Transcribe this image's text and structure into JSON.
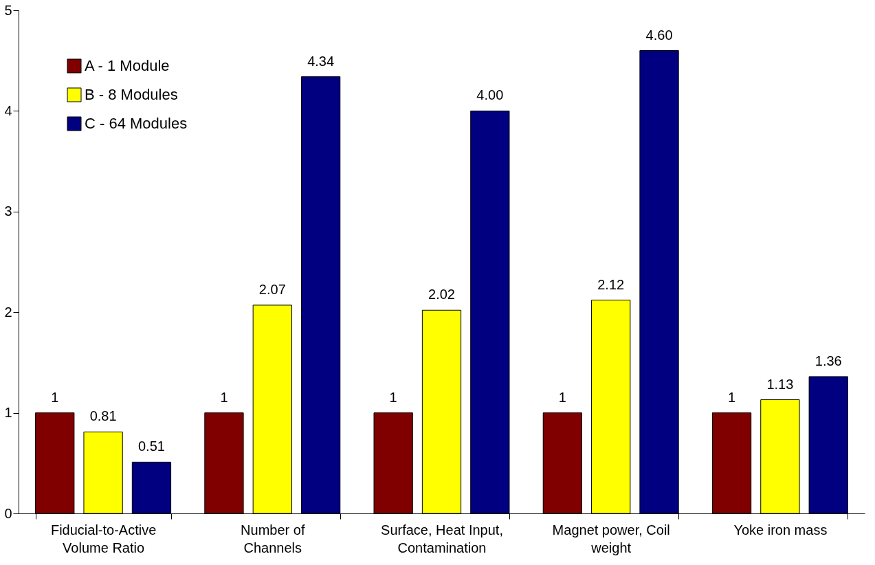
{
  "chart_data": {
    "type": "bar",
    "categories": [
      "Fiducial-to-Active\nVolume Ratio",
      "Number of\nChannels",
      "Surface, Heat Input,\nContamination",
      "Magnet power, Coil\nweight",
      "Yoke iron mass"
    ],
    "series": [
      {
        "name": "A - 1 Module",
        "color": "#800000",
        "values": [
          1,
          1,
          1,
          1,
          1
        ],
        "value_labels": [
          "1",
          "1",
          "1",
          "1",
          "1"
        ]
      },
      {
        "name": "B - 8 Modules",
        "color": "#ffff00",
        "values": [
          0.81,
          2.07,
          2.02,
          2.12,
          1.13
        ],
        "value_labels": [
          "0.81",
          "2.07",
          "2.02",
          "2.12",
          "1.13"
        ]
      },
      {
        "name": "C - 64 Modules",
        "color": "#000080",
        "values": [
          0.51,
          4.34,
          4.0,
          4.6,
          1.36
        ],
        "value_labels": [
          "0.51",
          "4.34",
          "4.00",
          "4.60",
          "1.36"
        ]
      }
    ],
    "ylim": [
      0,
      5
    ],
    "yticks": [
      0,
      1,
      2,
      3,
      4,
      5
    ],
    "grid": false,
    "legend": "top left"
  }
}
